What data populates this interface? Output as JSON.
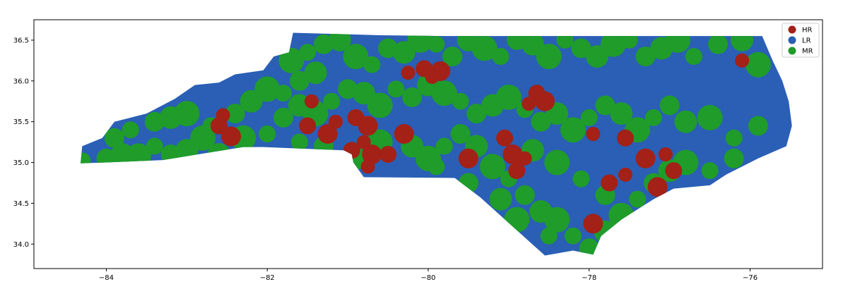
{
  "chart_data": {
    "type": "scatter",
    "title": "",
    "xlabel": "",
    "ylabel": "",
    "xlim": [
      -84.9,
      -75.1
    ],
    "ylim": [
      33.7,
      36.75
    ],
    "x_ticks": [
      -84,
      -82,
      -80,
      -78,
      -76
    ],
    "y_ticks": [
      34.0,
      34.5,
      35.0,
      35.5,
      36.0,
      36.5
    ],
    "x_tick_labels": [
      "−84",
      "−82",
      "−80",
      "−78",
      "−76"
    ],
    "y_tick_labels": [
      "34.0",
      "34.5",
      "35.0",
      "35.5",
      "36.0",
      "36.5"
    ],
    "grid": false,
    "legend_position": "top-right",
    "background_region": {
      "name": "LR",
      "color": "#2a5fb5"
    },
    "series": [
      {
        "name": "HR",
        "color": "#a32116"
      },
      {
        "name": "LR",
        "color": "#2a5fb5"
      },
      {
        "name": "MR",
        "color": "#1f9c2a"
      }
    ],
    "points": {
      "MR": [
        [
          -84.3,
          35.02
        ],
        [
          -84.0,
          35.05
        ],
        [
          -83.8,
          35.1
        ],
        [
          -83.6,
          35.08
        ],
        [
          -83.4,
          35.2
        ],
        [
          -83.2,
          35.1
        ],
        [
          -83.0,
          35.15
        ],
        [
          -82.8,
          35.3
        ],
        [
          -83.7,
          35.4
        ],
        [
          -83.4,
          35.5
        ],
        [
          -83.2,
          35.55
        ],
        [
          -83.0,
          35.6
        ],
        [
          -82.7,
          35.45
        ],
        [
          -82.4,
          35.6
        ],
        [
          -82.2,
          35.75
        ],
        [
          -82.0,
          35.9
        ],
        [
          -81.8,
          35.85
        ],
        [
          -81.6,
          36.0
        ],
        [
          -81.4,
          36.1
        ],
        [
          -81.7,
          36.25
        ],
        [
          -81.5,
          36.35
        ],
        [
          -81.3,
          36.45
        ],
        [
          -81.1,
          36.5
        ],
        [
          -80.9,
          36.3
        ],
        [
          -80.7,
          36.2
        ],
        [
          -80.5,
          36.4
        ],
        [
          -80.3,
          36.35
        ],
        [
          -80.1,
          36.5
        ],
        [
          -79.9,
          36.45
        ],
        [
          -79.7,
          36.3
        ],
        [
          -79.5,
          36.5
        ],
        [
          -79.3,
          36.4
        ],
        [
          -79.1,
          36.3
        ],
        [
          -78.9,
          36.5
        ],
        [
          -78.7,
          36.45
        ],
        [
          -78.5,
          36.3
        ],
        [
          -78.3,
          36.5
        ],
        [
          -78.1,
          36.4
        ],
        [
          -77.9,
          36.3
        ],
        [
          -77.7,
          36.45
        ],
        [
          -77.5,
          36.5
        ],
        [
          -77.3,
          36.3
        ],
        [
          -77.1,
          36.4
        ],
        [
          -76.9,
          36.5
        ],
        [
          -76.7,
          36.3
        ],
        [
          -76.4,
          36.45
        ],
        [
          -76.1,
          36.5
        ],
        [
          -75.9,
          36.2
        ],
        [
          -82.0,
          35.35
        ],
        [
          -81.8,
          35.55
        ],
        [
          -81.6,
          35.7
        ],
        [
          -81.4,
          35.6
        ],
        [
          -81.2,
          35.75
        ],
        [
          -81.0,
          35.9
        ],
        [
          -80.8,
          35.85
        ],
        [
          -80.6,
          35.7
        ],
        [
          -80.4,
          35.9
        ],
        [
          -80.2,
          35.8
        ],
        [
          -80.0,
          35.95
        ],
        [
          -79.8,
          35.85
        ],
        [
          -79.6,
          35.75
        ],
        [
          -79.4,
          35.6
        ],
        [
          -79.2,
          35.7
        ],
        [
          -79.0,
          35.8
        ],
        [
          -78.8,
          35.65
        ],
        [
          -78.6,
          35.5
        ],
        [
          -78.4,
          35.6
        ],
        [
          -78.2,
          35.4
        ],
        [
          -78.0,
          35.55
        ],
        [
          -77.8,
          35.7
        ],
        [
          -77.6,
          35.6
        ],
        [
          -77.4,
          35.4
        ],
        [
          -77.2,
          35.55
        ],
        [
          -77.0,
          35.7
        ],
        [
          -76.8,
          35.5
        ],
        [
          -76.5,
          35.55
        ],
        [
          -76.2,
          35.3
        ],
        [
          -75.9,
          35.45
        ],
        [
          -80.2,
          35.2
        ],
        [
          -80.0,
          35.05
        ],
        [
          -79.8,
          35.2
        ],
        [
          -79.6,
          35.35
        ],
        [
          -79.4,
          35.2
        ],
        [
          -79.2,
          34.95
        ],
        [
          -79.0,
          34.8
        ],
        [
          -78.8,
          34.6
        ],
        [
          -78.6,
          34.4
        ],
        [
          -78.4,
          34.3
        ],
        [
          -78.2,
          34.1
        ],
        [
          -78.0,
          33.95
        ],
        [
          -77.8,
          34.15
        ],
        [
          -77.6,
          34.35
        ],
        [
          -77.4,
          34.55
        ],
        [
          -77.2,
          34.75
        ],
        [
          -77.0,
          34.9
        ],
        [
          -76.8,
          35.0
        ],
        [
          -76.5,
          34.9
        ],
        [
          -76.2,
          35.05
        ],
        [
          -78.7,
          35.15
        ],
        [
          -78.4,
          35.0
        ],
        [
          -78.1,
          34.8
        ],
        [
          -77.8,
          34.6
        ],
        [
          -82.6,
          35.1
        ],
        [
          -82.3,
          35.3
        ],
        [
          -81.6,
          35.25
        ],
        [
          -81.3,
          35.2
        ],
        [
          -80.9,
          35.05
        ],
        [
          -80.6,
          35.25
        ],
        [
          -79.9,
          34.95
        ],
        [
          -79.5,
          34.75
        ],
        [
          -79.1,
          34.55
        ],
        [
          -78.9,
          34.3
        ],
        [
          -78.5,
          34.1
        ],
        [
          -83.9,
          35.3
        ]
      ],
      "HR": [
        [
          -82.55,
          35.58
        ],
        [
          -82.6,
          35.45
        ],
        [
          -82.45,
          35.32
        ],
        [
          -81.45,
          35.75
        ],
        [
          -81.5,
          35.45
        ],
        [
          -81.25,
          35.35
        ],
        [
          -81.15,
          35.5
        ],
        [
          -80.9,
          35.55
        ],
        [
          -80.75,
          35.45
        ],
        [
          -80.8,
          35.25
        ],
        [
          -80.95,
          35.15
        ],
        [
          -80.7,
          35.1
        ],
        [
          -80.75,
          34.95
        ],
        [
          -80.5,
          35.1
        ],
        [
          -80.3,
          35.35
        ],
        [
          -80.25,
          36.1
        ],
        [
          -80.05,
          36.15
        ],
        [
          -79.85,
          36.12
        ],
        [
          -79.95,
          36.05
        ],
        [
          -78.65,
          35.85
        ],
        [
          -78.55,
          35.75
        ],
        [
          -78.75,
          35.72
        ],
        [
          -79.05,
          35.3
        ],
        [
          -78.95,
          35.1
        ],
        [
          -78.8,
          35.05
        ],
        [
          -78.9,
          34.9
        ],
        [
          -79.5,
          35.05
        ],
        [
          -77.95,
          35.35
        ],
        [
          -77.55,
          35.3
        ],
        [
          -77.3,
          35.05
        ],
        [
          -77.05,
          35.1
        ],
        [
          -76.95,
          34.9
        ],
        [
          -77.15,
          34.7
        ],
        [
          -77.55,
          34.85
        ],
        [
          -77.75,
          34.75
        ],
        [
          -77.95,
          34.25
        ],
        [
          -76.1,
          36.25
        ]
      ]
    }
  }
}
